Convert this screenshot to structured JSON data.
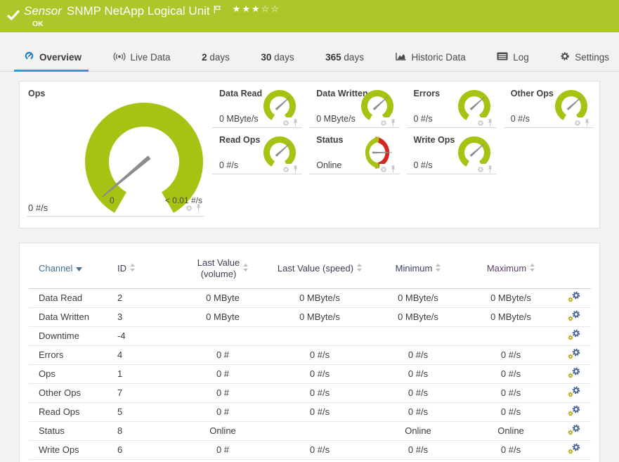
{
  "header": {
    "kind_label": "Sensor",
    "title": "SNMP NetApp Logical Unit",
    "status": "OK",
    "stars_filled": 3,
    "stars_total": 5
  },
  "tabs": [
    {
      "label": "Overview",
      "icon": "gauge",
      "active": true
    },
    {
      "label": "Live Data",
      "icon": "live",
      "active": false
    },
    {
      "prefix": "2",
      "label": "days",
      "active": false
    },
    {
      "prefix": "30",
      "label": "days",
      "active": false
    },
    {
      "prefix": "365",
      "label": "days",
      "active": false
    },
    {
      "label": "Historic Data",
      "icon": "chart",
      "active": false
    },
    {
      "label": "Log",
      "icon": "log",
      "active": false
    },
    {
      "label": "Settings",
      "icon": "gear",
      "active": false
    }
  ],
  "gauges": {
    "main": {
      "label": "Ops",
      "value": "0 #/s",
      "scale_min": "0",
      "scale_max": "< 0.01 #/s"
    },
    "small": [
      {
        "label": "Data Read",
        "value": "0 MByte/s",
        "style": "gauge"
      },
      {
        "label": "Data Written",
        "value": "0 MByte/s",
        "style": "gauge"
      },
      {
        "label": "Errors",
        "value": "0 #/s",
        "style": "gauge"
      },
      {
        "label": "Other Ops",
        "value": "0 #/s",
        "style": "gauge"
      },
      {
        "label": "Read Ops",
        "value": "0 #/s",
        "style": "gauge"
      },
      {
        "label": "Status",
        "value": "Online",
        "style": "status-donut"
      },
      {
        "label": "Write Ops",
        "value": "0 #/s",
        "style": "gauge"
      }
    ]
  },
  "table": {
    "headers": [
      {
        "lines": [
          "Channel"
        ],
        "sort": "desc",
        "color": "#41708f"
      },
      {
        "lines": [
          "ID"
        ],
        "sort": "both",
        "color": "#3d3d52"
      },
      {
        "lines": [
          "Last Value",
          "(volume)"
        ],
        "sort": "both",
        "color": "#3d3d52"
      },
      {
        "lines": [
          "Last Value (speed)"
        ],
        "sort": "both",
        "color": "#3d3d52"
      },
      {
        "lines": [
          "Minimum"
        ],
        "sort": "both",
        "color": "#3b3f63"
      },
      {
        "lines": [
          "Maximum"
        ],
        "sort": "both",
        "color": "#5e3e68"
      },
      {
        "lines": [
          ""
        ],
        "sort": "none",
        "color": "#3d3d52"
      }
    ],
    "rows": [
      {
        "channel": "Data Read",
        "id": "2",
        "last_volume": "0 MByte",
        "last_speed": "0 MByte/s",
        "minimum": "0 MByte/s",
        "maximum": "0 MByte/s"
      },
      {
        "channel": "Data Written",
        "id": "3",
        "last_volume": "0 MByte",
        "last_speed": "0 MByte/s",
        "minimum": "0 MByte/s",
        "maximum": "0 MByte/s"
      },
      {
        "channel": "Downtime",
        "id": "-4",
        "last_volume": "",
        "last_speed": "",
        "minimum": "",
        "maximum": ""
      },
      {
        "channel": "Errors",
        "id": "4",
        "last_volume": "0 #",
        "last_speed": "0 #/s",
        "minimum": "0 #/s",
        "maximum": "0 #/s"
      },
      {
        "channel": "Ops",
        "id": "1",
        "last_volume": "0 #",
        "last_speed": "0 #/s",
        "minimum": "0 #/s",
        "maximum": "0 #/s"
      },
      {
        "channel": "Other Ops",
        "id": "7",
        "last_volume": "0 #",
        "last_speed": "0 #/s",
        "minimum": "0 #/s",
        "maximum": "0 #/s"
      },
      {
        "channel": "Read Ops",
        "id": "5",
        "last_volume": "0 #",
        "last_speed": "0 #/s",
        "minimum": "0 #/s",
        "maximum": "0 #/s"
      },
      {
        "channel": "Status",
        "id": "8",
        "last_volume": "Online",
        "last_speed": "",
        "minimum": "Online",
        "maximum": "Online"
      },
      {
        "channel": "Write Ops",
        "id": "6",
        "last_volume": "0 #",
        "last_speed": "0 #/s",
        "minimum": "0 #/s",
        "maximum": "0 #/s"
      }
    ]
  },
  "colors": {
    "header_green": "#aec62a",
    "tab_active_blue": "#2e9ad2",
    "gauge_green": "#a6c313",
    "status_red": "#d3281f",
    "needle_gray": "#8d8d8d",
    "icon_gray": "#c6c6c6",
    "edit_gear_blue": "#3f5e91",
    "edit_gear_yellow": "#b2a40c"
  }
}
